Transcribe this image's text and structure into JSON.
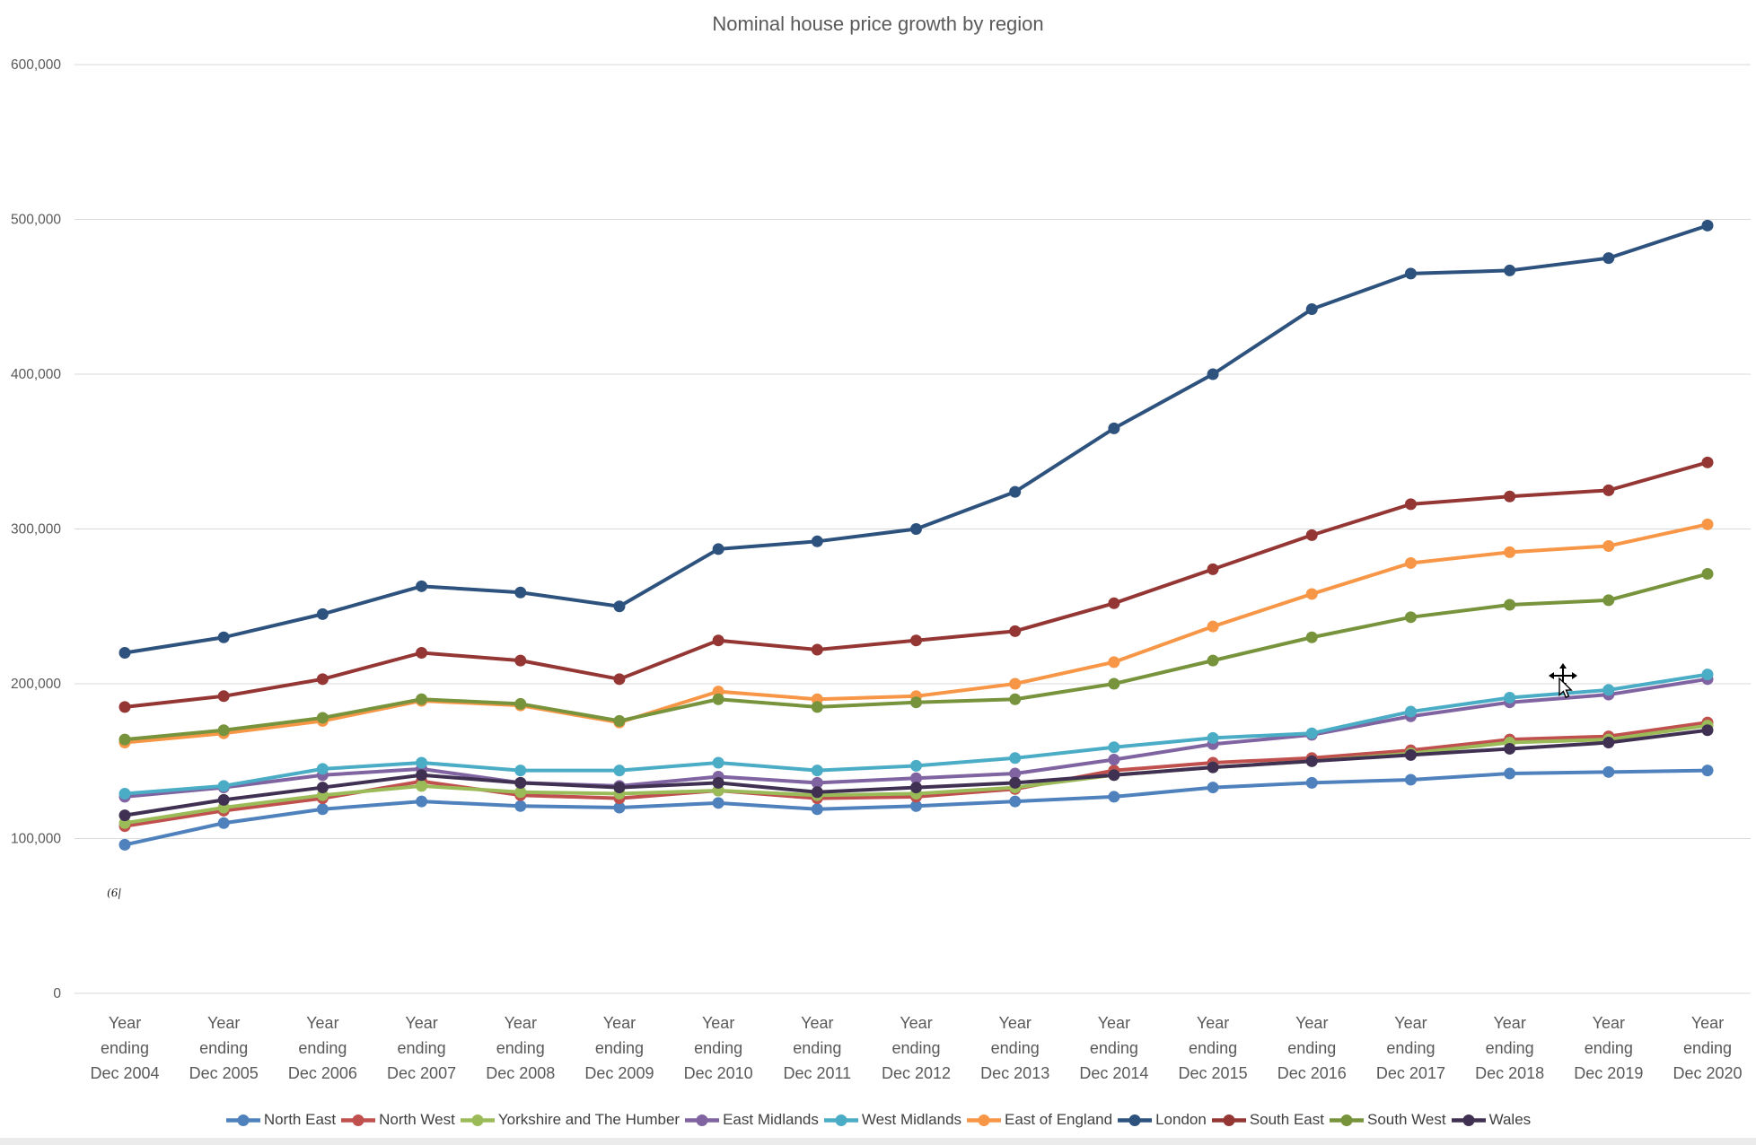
{
  "title": "Nominal house price growth by region",
  "artifact": "(6|",
  "colors": {
    "grid": "#d9d9d9",
    "axis_text": "#595959",
    "legend_text": "#404040",
    "background": "#ffffff"
  },
  "chart_data": {
    "type": "line",
    "title": "Nominal house price growth by region",
    "xlabel": "",
    "ylabel": "",
    "grid": true,
    "legend_position": "bottom",
    "y_axis": {
      "min": 0,
      "max": 600000,
      "step": 100000,
      "tick_labels": [
        "0",
        "100,000",
        "200,000",
        "300,000",
        "400,000",
        "500,000",
        "600,000"
      ]
    },
    "categories": [
      "Year ending Dec 2004",
      "Year ending Dec 2005",
      "Year ending Dec 2006",
      "Year ending Dec 2007",
      "Year ending Dec 2008",
      "Year ending Dec 2009",
      "Year ending Dec 2010",
      "Year ending Dec 2011",
      "Year ending Dec 2012",
      "Year ending Dec 2013",
      "Year ending Dec 2014",
      "Year ending Dec 2015",
      "Year ending Dec 2016",
      "Year ending Dec 2017",
      "Year ending Dec 2018",
      "Year ending Dec 2019",
      "Year ending Dec 2020"
    ],
    "series": [
      {
        "name": "North East",
        "color": "#4F81BD",
        "values": [
          96000,
          110000,
          119000,
          124000,
          121000,
          120000,
          123000,
          119000,
          121000,
          124000,
          127000,
          133000,
          136000,
          138000,
          142000,
          143000,
          144000
        ]
      },
      {
        "name": "North West",
        "color": "#C0504D",
        "values": [
          108000,
          118000,
          126000,
          137000,
          128000,
          126000,
          131000,
          126000,
          127000,
          132000,
          144000,
          149000,
          152000,
          157000,
          164000,
          166000,
          175000
        ]
      },
      {
        "name": "Yorkshire and The Humber",
        "color": "#9BBB59",
        "values": [
          110000,
          120000,
          128000,
          134000,
          130000,
          129000,
          131000,
          128000,
          129000,
          133000,
          141000,
          146000,
          150000,
          155000,
          162000,
          164000,
          173000
        ]
      },
      {
        "name": "East Midlands",
        "color": "#8064A2",
        "values": [
          127000,
          133000,
          141000,
          145000,
          136000,
          134000,
          140000,
          136000,
          139000,
          142000,
          151000,
          161000,
          167000,
          179000,
          188000,
          193000,
          203000
        ]
      },
      {
        "name": "West Midlands",
        "color": "#4BACC6",
        "values": [
          129000,
          134000,
          145000,
          149000,
          144000,
          144000,
          149000,
          144000,
          147000,
          152000,
          159000,
          165000,
          168000,
          182000,
          191000,
          196000,
          206000
        ]
      },
      {
        "name": "East of England",
        "color": "#F79646",
        "values": [
          162000,
          168000,
          176000,
          189000,
          186000,
          175000,
          195000,
          190000,
          192000,
          200000,
          214000,
          237000,
          258000,
          278000,
          285000,
          289000,
          303000
        ]
      },
      {
        "name": "London",
        "color": "#2E527E",
        "values": [
          220000,
          230000,
          245000,
          263000,
          259000,
          250000,
          287000,
          292000,
          300000,
          324000,
          365000,
          400000,
          442000,
          465000,
          467000,
          475000,
          496000
        ]
      },
      {
        "name": "South East",
        "color": "#943634",
        "values": [
          185000,
          192000,
          203000,
          220000,
          215000,
          203000,
          228000,
          222000,
          228000,
          234000,
          252000,
          274000,
          296000,
          316000,
          321000,
          325000,
          343000
        ]
      },
      {
        "name": "South West",
        "color": "#77933C",
        "values": [
          164000,
          170000,
          178000,
          190000,
          187000,
          176000,
          190000,
          185000,
          188000,
          190000,
          200000,
          215000,
          230000,
          243000,
          251000,
          254000,
          271000
        ]
      },
      {
        "name": "Wales",
        "color": "#403152",
        "values": [
          115000,
          125000,
          133000,
          141000,
          136000,
          133000,
          136000,
          130000,
          133000,
          136000,
          141000,
          146000,
          150000,
          154000,
          158000,
          162000,
          170000
        ]
      }
    ]
  }
}
